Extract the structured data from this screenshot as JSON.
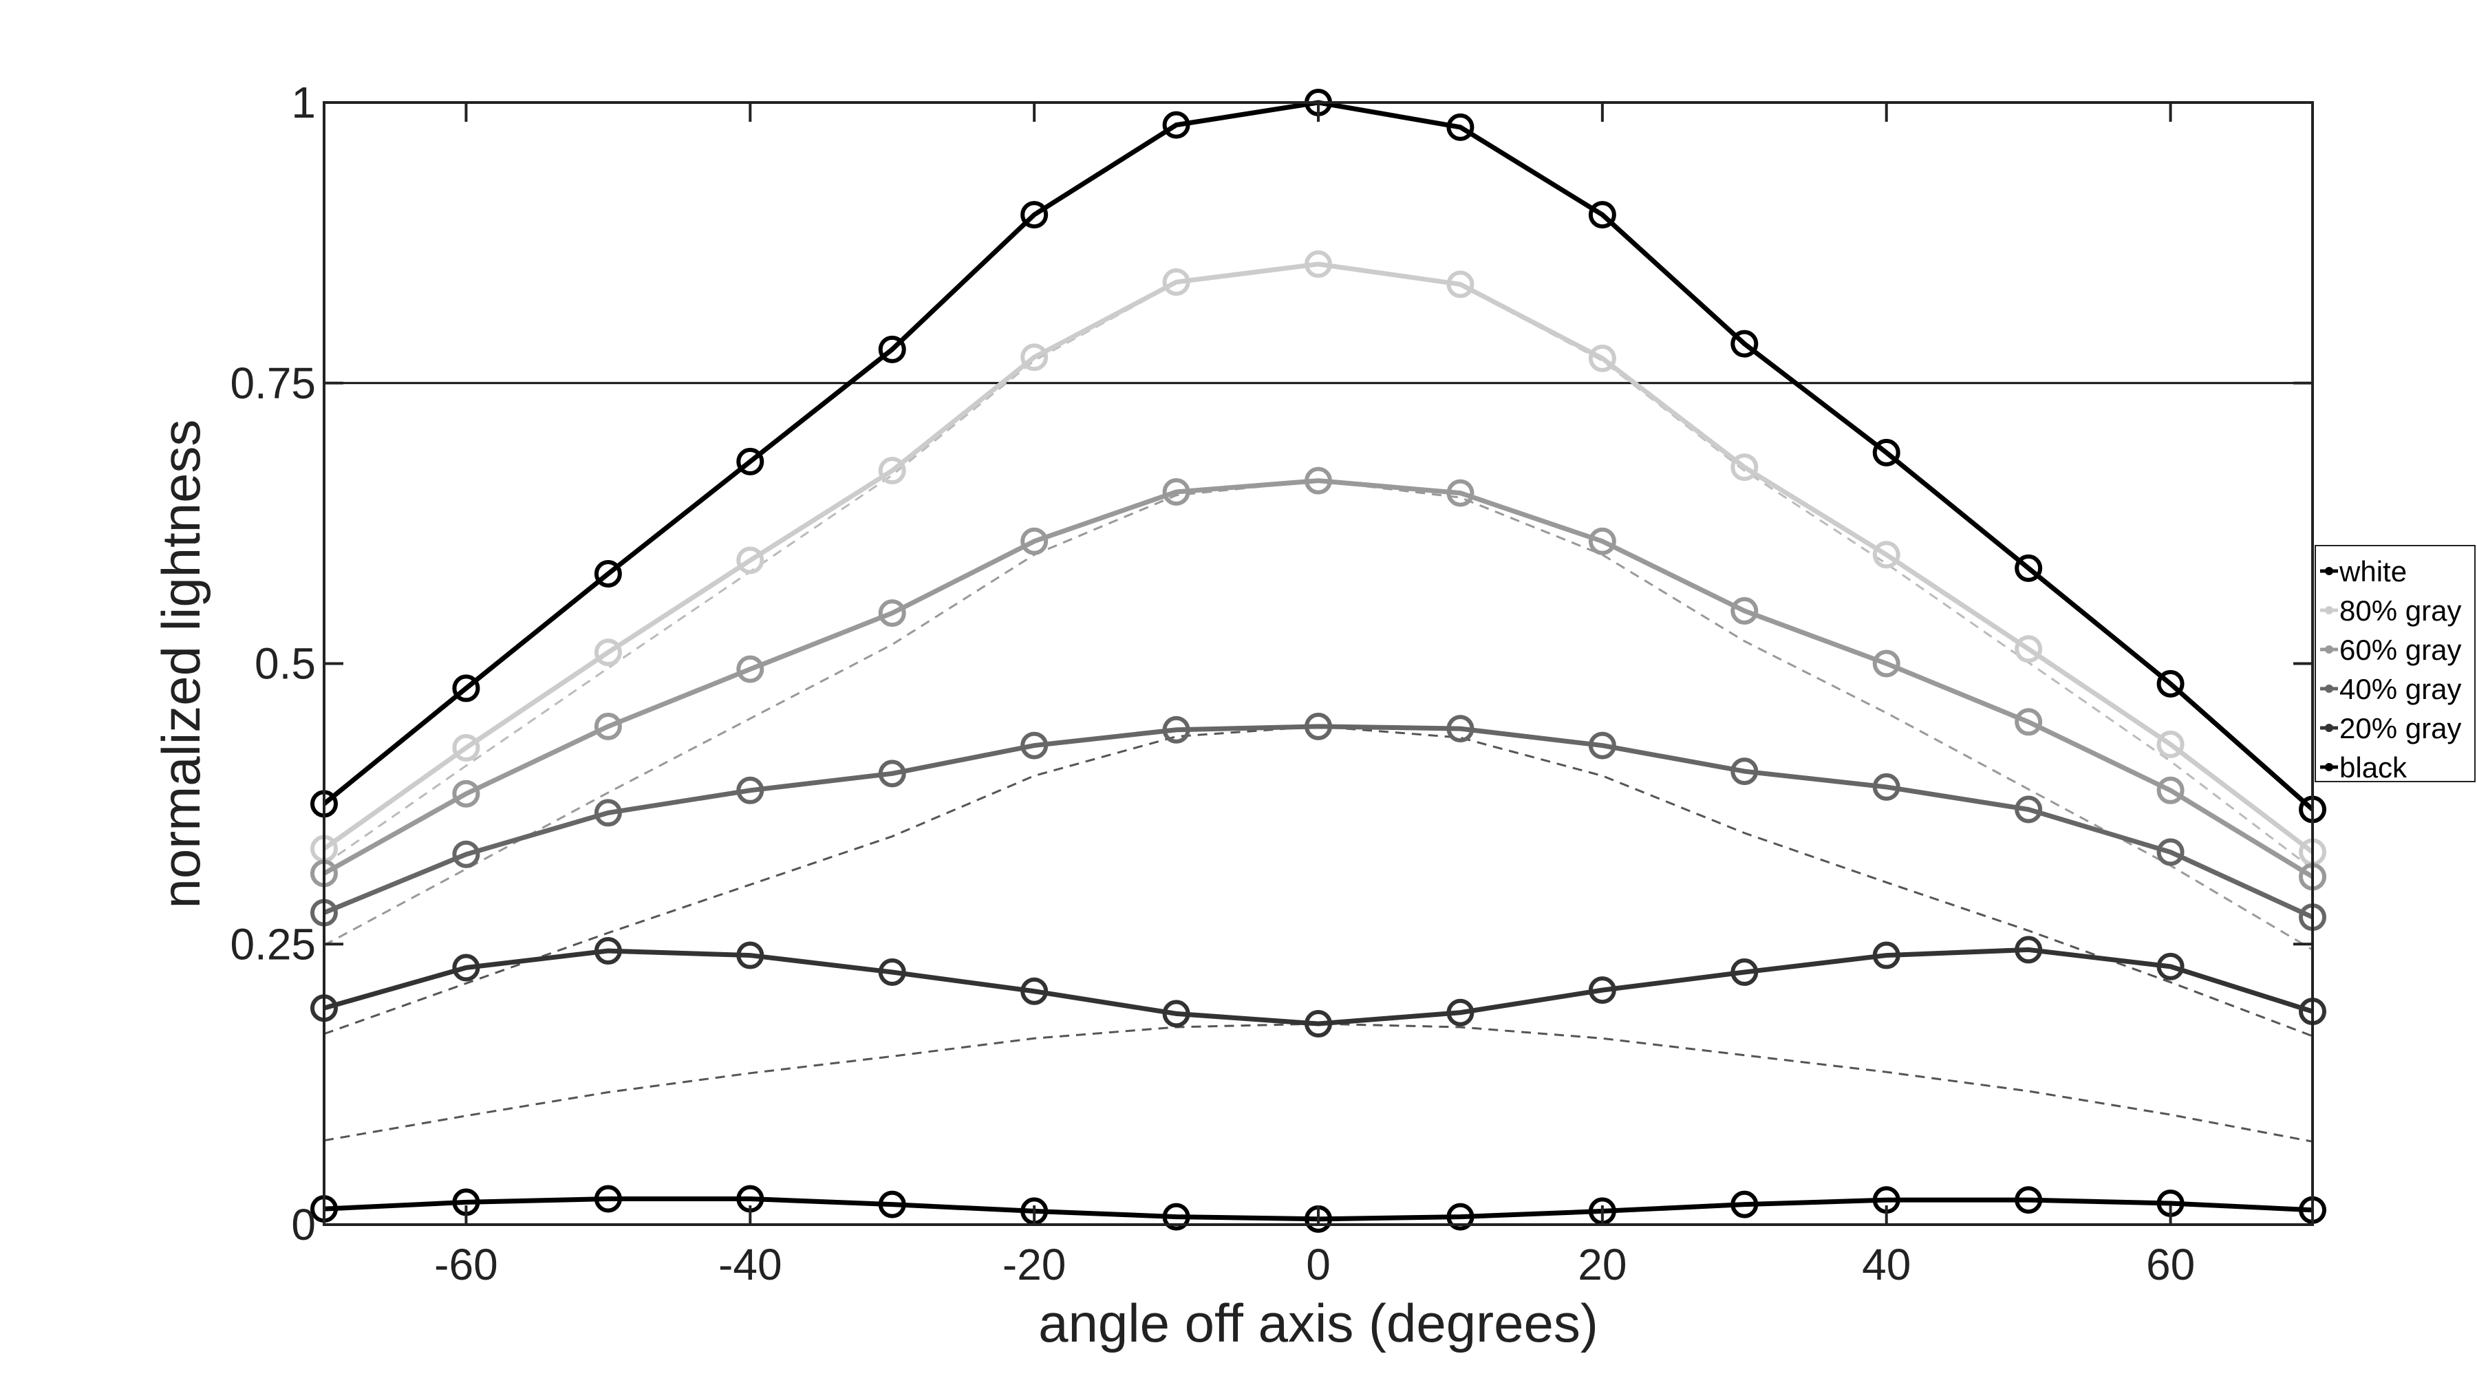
{
  "chart_data": {
    "type": "line",
    "title": "",
    "xlabel": "angle off axis (degrees)",
    "ylabel": "normalized lightness",
    "xlim": [
      -70,
      70
    ],
    "ylim": [
      0,
      1
    ],
    "xticks": [
      -60,
      -40,
      -20,
      0,
      20,
      40,
      60
    ],
    "xtick_labels": [
      "-60",
      "-40",
      "-20",
      "0",
      "20",
      "40",
      "60"
    ],
    "yticks": [
      0,
      0.25,
      0.5,
      0.75,
      1
    ],
    "ytick_labels": [
      "0",
      "0.25",
      "0.5",
      "0.75",
      "1"
    ],
    "reference_line": 0.75,
    "legend_position": "right",
    "x": [
      -70,
      -60,
      -50,
      -40,
      -30,
      -20,
      -10,
      0,
      10,
      20,
      30,
      40,
      50,
      60,
      70
    ],
    "series": [
      {
        "name": "white",
        "color": "#000000",
        "values": [
          0.375,
          0.478,
          0.58,
          0.68,
          0.78,
          0.9,
          0.98,
          1.0,
          0.978,
          0.9,
          0.785,
          0.688,
          0.585,
          0.482,
          0.37
        ]
      },
      {
        "name": "80% gray",
        "color": "#cccccc",
        "values": [
          0.335,
          0.425,
          0.51,
          0.592,
          0.672,
          0.773,
          0.84,
          0.856,
          0.838,
          0.772,
          0.675,
          0.597,
          0.513,
          0.428,
          0.332
        ],
        "reference": [
          0.321,
          0.409,
          0.496,
          0.582,
          0.668,
          0.77,
          0.839,
          0.856,
          0.837,
          0.77,
          0.672,
          0.589,
          0.501,
          0.413,
          0.317
        ]
      },
      {
        "name": "60% gray",
        "color": "#999999",
        "values": [
          0.313,
          0.384,
          0.444,
          0.495,
          0.545,
          0.609,
          0.653,
          0.663,
          0.652,
          0.609,
          0.547,
          0.5,
          0.448,
          0.387,
          0.31
        ],
        "reference": [
          0.249,
          0.317,
          0.385,
          0.451,
          0.517,
          0.597,
          0.65,
          0.663,
          0.648,
          0.597,
          0.52,
          0.456,
          0.388,
          0.32,
          0.245
        ]
      },
      {
        "name": "40% gray",
        "color": "#666666",
        "values": [
          0.278,
          0.33,
          0.367,
          0.387,
          0.402,
          0.427,
          0.441,
          0.444,
          0.442,
          0.427,
          0.404,
          0.39,
          0.37,
          0.332,
          0.274
        ],
        "reference": [
          0.17,
          0.215,
          0.26,
          0.303,
          0.346,
          0.4,
          0.435,
          0.444,
          0.434,
          0.4,
          0.349,
          0.305,
          0.262,
          0.216,
          0.168
        ]
      },
      {
        "name": "20% gray",
        "color": "#333333",
        "values": [
          0.193,
          0.229,
          0.244,
          0.24,
          0.225,
          0.208,
          0.188,
          0.179,
          0.189,
          0.209,
          0.225,
          0.24,
          0.245,
          0.23,
          0.19
        ],
        "reference": [
          0.075,
          0.097,
          0.118,
          0.135,
          0.15,
          0.166,
          0.176,
          0.179,
          0.176,
          0.166,
          0.151,
          0.136,
          0.119,
          0.098,
          0.074
        ]
      },
      {
        "name": "black",
        "color": "#000000",
        "values": [
          0.014,
          0.02,
          0.023,
          0.023,
          0.018,
          0.012,
          0.007,
          0.005,
          0.007,
          0.012,
          0.018,
          0.022,
          0.022,
          0.019,
          0.013
        ]
      }
    ]
  }
}
